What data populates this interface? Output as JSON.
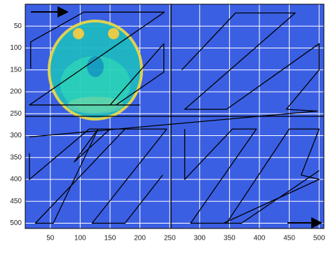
{
  "chart_data": {
    "type": "line",
    "xlim": [
      8,
      508
    ],
    "ylim": [
      0,
      512
    ],
    "y_reversed": true,
    "xticks": [
      50,
      100,
      150,
      200,
      250,
      300,
      350,
      400,
      450,
      500
    ],
    "yticks": [
      50,
      100,
      150,
      200,
      250,
      300,
      350,
      400,
      450,
      500
    ],
    "grid": true,
    "background": "#3b5fe3",
    "grid_color": "#ffffff",
    "series": [
      {
        "color": "#000000",
        "x": [
          17,
          17,
          106,
          241,
          15,
          160,
          240,
          240,
          150,
          200,
          null,
          270,
          360,
          460,
          275,
          345,
          500,
          500,
          445,
          497,
          15,
          null,
          15,
          15,
          115,
          175,
          25,
          55,
          130,
          90,
          150,
          245,
          120,
          175,
          238,
          null,
          275,
          275,
          355,
          395,
          285,
          345,
          450,
          500,
          470,
          500,
          340,
          370,
          500
        ],
        "values": [
          147,
          86,
          18,
          18,
          230,
          230,
          155,
          90,
          230,
          230,
          null,
          150,
          20,
          20,
          240,
          240,
          90,
          150,
          240,
          244,
          303,
          null,
          340,
          400,
          285,
          285,
          500,
          500,
          285,
          360,
          285,
          285,
          500,
          500,
          390,
          null,
          285,
          400,
          285,
          285,
          500,
          500,
          285,
          285,
          390,
          400,
          500,
          500,
          380
        ]
      },
      {
        "color": "#000000",
        "x": [
          252,
          252
        ],
        "values": [
          0,
          512
        ]
      },
      {
        "color": "#000000",
        "x": [
          8,
          508
        ],
        "values": [
          256,
          256
        ]
      }
    ]
  }
}
